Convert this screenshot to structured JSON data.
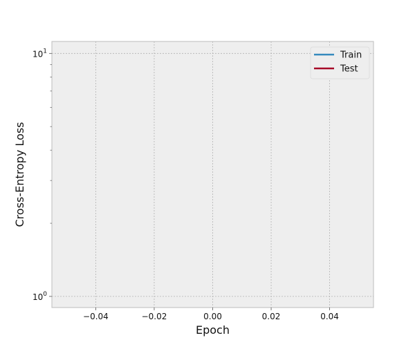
{
  "chart_data": {
    "type": "line",
    "xlabel": "Epoch",
    "ylabel": "Cross-Entropy Loss",
    "x_scale": "linear",
    "y_scale": "log",
    "xlim": [
      -0.055,
      0.055
    ],
    "ylim": [
      0.9,
      11.2
    ],
    "x_ticks": [
      -0.04,
      -0.02,
      0.0,
      0.02,
      0.04
    ],
    "x_tick_labels": [
      "−0.04",
      "−0.02",
      "0.00",
      "0.02",
      "0.04"
    ],
    "y_ticks": [
      1,
      10
    ],
    "y_tick_labels": [
      {
        "base": "10",
        "exp": "0"
      },
      {
        "base": "10",
        "exp": "1"
      }
    ],
    "y_minor_ticks": [
      2,
      3,
      4,
      5,
      6,
      7,
      8,
      9
    ],
    "grid": true,
    "legend_position": "top-right",
    "series": [
      {
        "name": "Train",
        "color": "#348ABD",
        "x": [],
        "y": []
      },
      {
        "name": "Test",
        "color": "#A60628",
        "x": [],
        "y": []
      }
    ]
  },
  "style": {
    "plot_background": "#EEEEEE",
    "grid_color": "#B2B2B2",
    "axes_edge_color": "#BCBCBC"
  }
}
